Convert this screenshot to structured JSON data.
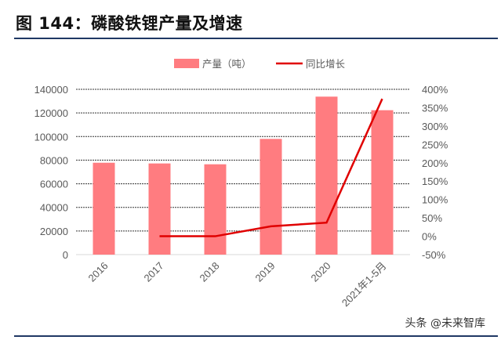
{
  "title": "图 144：磷酸铁锂产量及增速",
  "watermark": "头条 @未来智库",
  "chart_data": {
    "type": "bar+line",
    "categories": [
      "2016",
      "2017",
      "2018",
      "2019",
      "2020",
      "2021年1-5月"
    ],
    "series": [
      {
        "name": "产量（吨）",
        "type": "bar",
        "axis": "left",
        "color": "#FF7C80",
        "values": [
          77800,
          77200,
          76500,
          98000,
          133800,
          122300
        ]
      },
      {
        "name": "同比增长",
        "type": "line",
        "axis": "right",
        "color": "#E00000",
        "values": [
          null,
          0,
          0,
          27,
          37,
          374
        ]
      }
    ],
    "left_axis": {
      "ylim": [
        0,
        140000
      ],
      "ticks": [
        "0",
        "20000",
        "40000",
        "60000",
        "80000",
        "100000",
        "120000",
        "140000"
      ]
    },
    "right_axis": {
      "ylim": [
        -50,
        400
      ],
      "unit": "%",
      "ticks": [
        "-50%",
        "0%",
        "50%",
        "100%",
        "150%",
        "200%",
        "250%",
        "300%",
        "350%",
        "400%"
      ]
    },
    "grid": "dashed horizontal",
    "legend": "top"
  }
}
